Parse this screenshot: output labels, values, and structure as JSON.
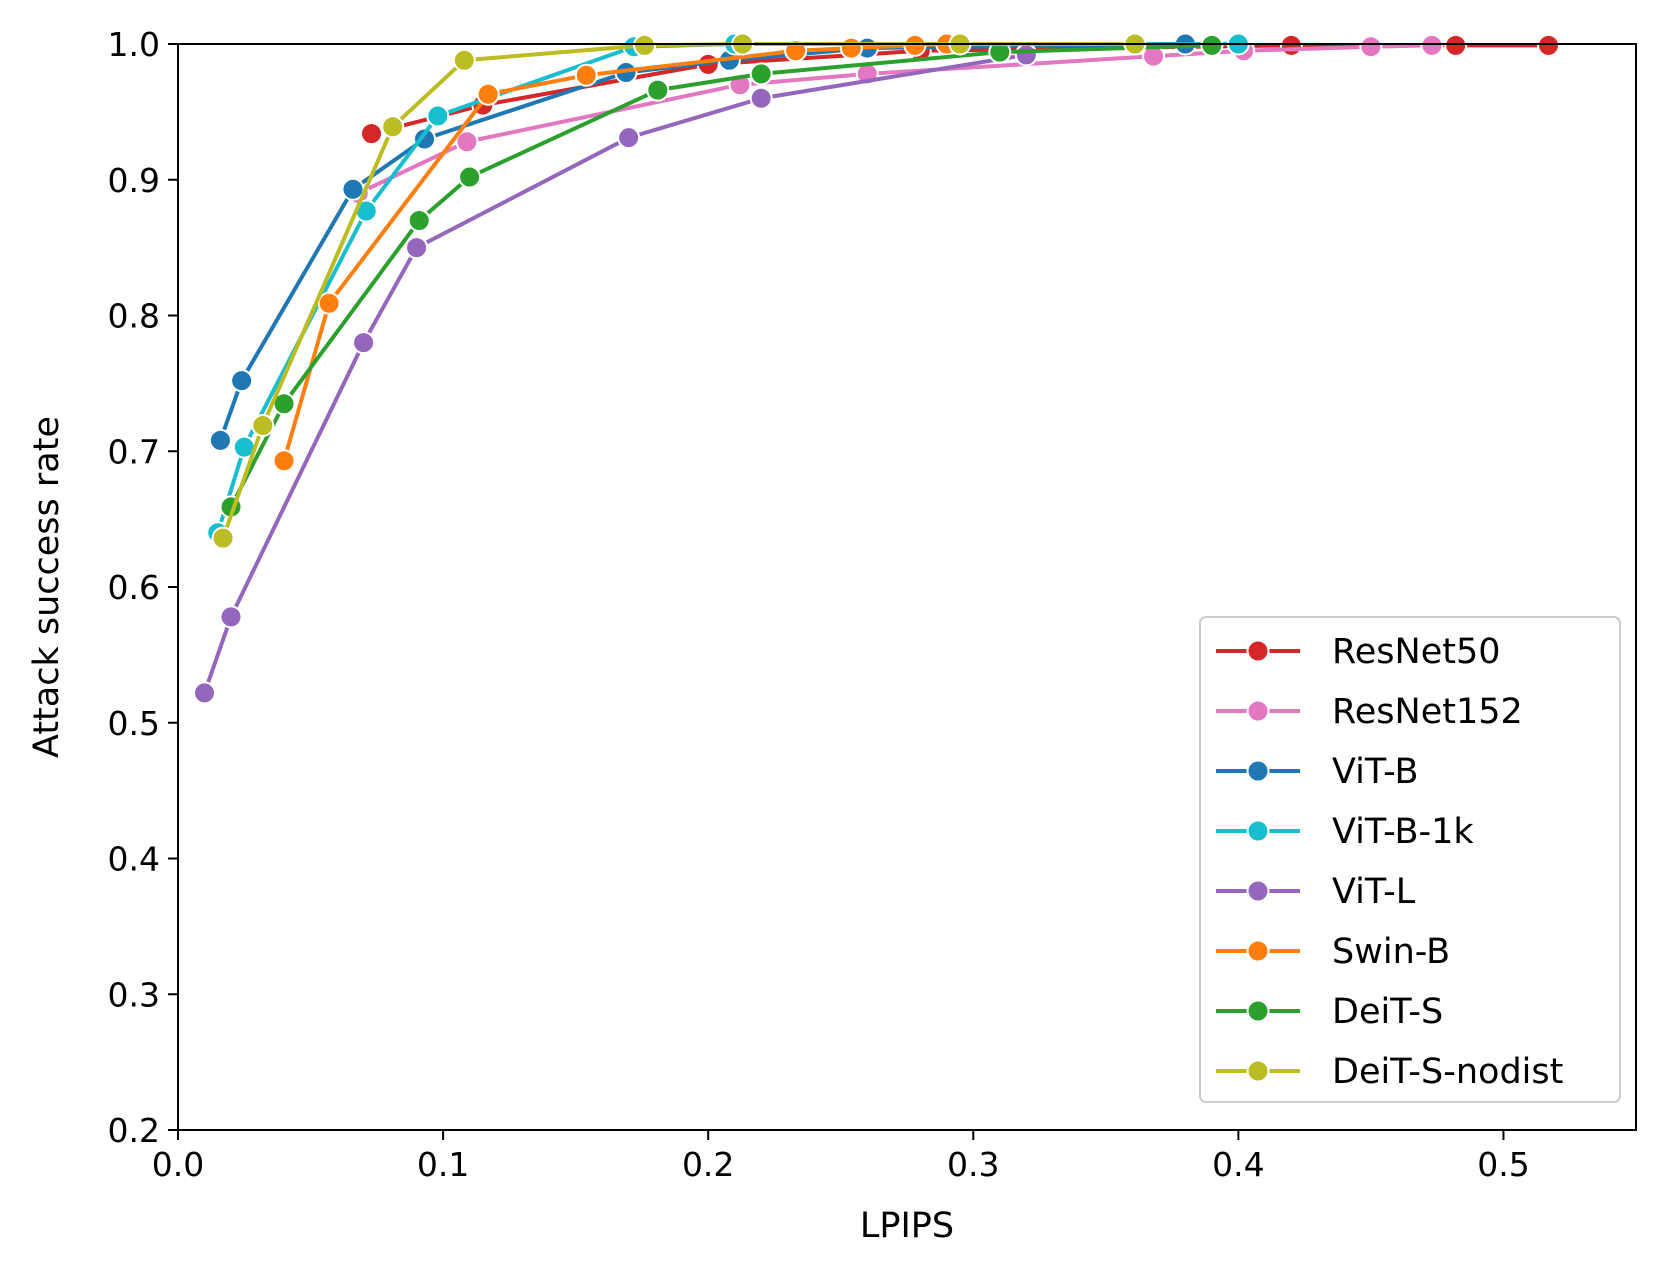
{
  "chart_data": {
    "type": "line",
    "title": "",
    "xlabel": "LPIPS",
    "ylabel": "Attack success rate",
    "xlim": [
      0.0,
      0.55
    ],
    "ylim": [
      0.2,
      1.0
    ],
    "xticks": [
      "0.0",
      "0.1",
      "0.2",
      "0.3",
      "0.4",
      "0.5"
    ],
    "yticks": [
      "0.2",
      "0.3",
      "0.4",
      "0.5",
      "0.6",
      "0.7",
      "0.8",
      "0.9",
      "1.0"
    ],
    "grid": false,
    "legend_position": "lower-right",
    "series": [
      {
        "name": "ResNet50",
        "color": "#d62728",
        "points": [
          [
            0.073,
            0.934
          ],
          [
            0.115,
            0.955
          ],
          [
            0.2,
            0.985
          ],
          [
            0.28,
            0.995
          ],
          [
            0.42,
            0.999
          ],
          [
            0.482,
            0.999
          ],
          [
            0.517,
            0.999
          ]
        ]
      },
      {
        "name": "ResNet152",
        "color": "#e377c2",
        "points": [
          [
            0.068,
            0.89
          ],
          [
            0.109,
            0.928
          ],
          [
            0.212,
            0.97
          ],
          [
            0.26,
            0.978
          ],
          [
            0.368,
            0.991
          ],
          [
            0.402,
            0.995
          ],
          [
            0.45,
            0.998
          ],
          [
            0.473,
            0.999
          ]
        ]
      },
      {
        "name": "ViT-B",
        "color": "#1f77b4",
        "points": [
          [
            0.016,
            0.708
          ],
          [
            0.024,
            0.752
          ],
          [
            0.066,
            0.893
          ],
          [
            0.093,
            0.93
          ],
          [
            0.169,
            0.979
          ],
          [
            0.208,
            0.988
          ],
          [
            0.26,
            0.997
          ],
          [
            0.38,
            1.0
          ]
        ]
      },
      {
        "name": "ViT-B-1k",
        "color": "#17becf",
        "points": [
          [
            0.015,
            0.64
          ],
          [
            0.025,
            0.703
          ],
          [
            0.071,
            0.877
          ],
          [
            0.098,
            0.947
          ],
          [
            0.172,
            0.998
          ],
          [
            0.21,
            1.0
          ],
          [
            0.4,
            1.0
          ]
        ]
      },
      {
        "name": "ViT-L",
        "color": "#9467bd",
        "points": [
          [
            0.01,
            0.522
          ],
          [
            0.02,
            0.578
          ],
          [
            0.07,
            0.78
          ],
          [
            0.09,
            0.85
          ],
          [
            0.17,
            0.931
          ],
          [
            0.22,
            0.96
          ],
          [
            0.32,
            0.992
          ]
        ]
      },
      {
        "name": "Swin-B",
        "color": "#ff7f0e",
        "points": [
          [
            0.04,
            0.693
          ],
          [
            0.057,
            0.809
          ],
          [
            0.117,
            0.963
          ],
          [
            0.154,
            0.977
          ],
          [
            0.233,
            0.995
          ],
          [
            0.254,
            0.997
          ],
          [
            0.278,
            0.999
          ],
          [
            0.29,
            1.0
          ]
        ]
      },
      {
        "name": "DeiT-S",
        "color": "#2ca02c",
        "points": [
          [
            0.02,
            0.659
          ],
          [
            0.04,
            0.735
          ],
          [
            0.091,
            0.87
          ],
          [
            0.11,
            0.902
          ],
          [
            0.181,
            0.966
          ],
          [
            0.22,
            0.978
          ],
          [
            0.31,
            0.994
          ],
          [
            0.39,
            0.999
          ]
        ]
      },
      {
        "name": "DeiT-S-nodist",
        "color": "#bcbd22",
        "points": [
          [
            0.017,
            0.636
          ],
          [
            0.032,
            0.719
          ],
          [
            0.081,
            0.939
          ],
          [
            0.108,
            0.988
          ],
          [
            0.176,
            0.999
          ],
          [
            0.213,
            1.0
          ],
          [
            0.295,
            1.0
          ],
          [
            0.361,
            1.0
          ]
        ]
      }
    ]
  }
}
